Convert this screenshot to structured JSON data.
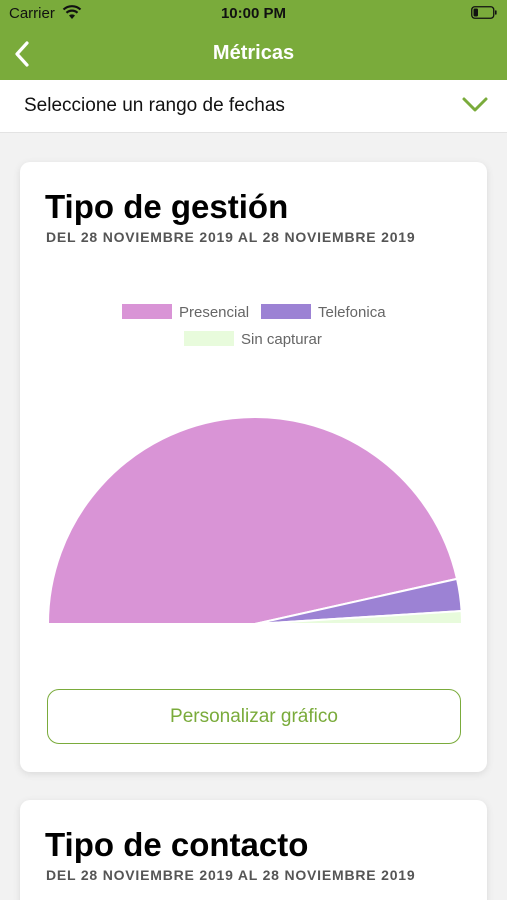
{
  "status_bar": {
    "carrier": "Carrier",
    "time": "10:00 PM"
  },
  "nav": {
    "title": "Métricas"
  },
  "date_selector": {
    "label": "Seleccione un rango de fechas"
  },
  "cards": [
    {
      "title": "Tipo de gestión",
      "subtitle": "DEL 28 NOVIEMBRE 2019 AL 28 NOVIEMBRE 2019",
      "button_label": "Personalizar gráfico",
      "chart_data": {
        "type": "pie",
        "categories": [
          "Presencial",
          "Telefonica",
          "Sin capturar"
        ],
        "values": [
          93,
          5,
          2
        ],
        "colors": [
          "#d994d6",
          "#9c82d4",
          "#e8fbdc"
        ],
        "legend_position": "top-center",
        "title": "",
        "xlabel": "",
        "ylabel": ""
      }
    },
    {
      "title": "Tipo de contacto",
      "subtitle": "DEL 28 NOVIEMBRE 2019 AL 28 NOVIEMBRE 2019"
    }
  ]
}
